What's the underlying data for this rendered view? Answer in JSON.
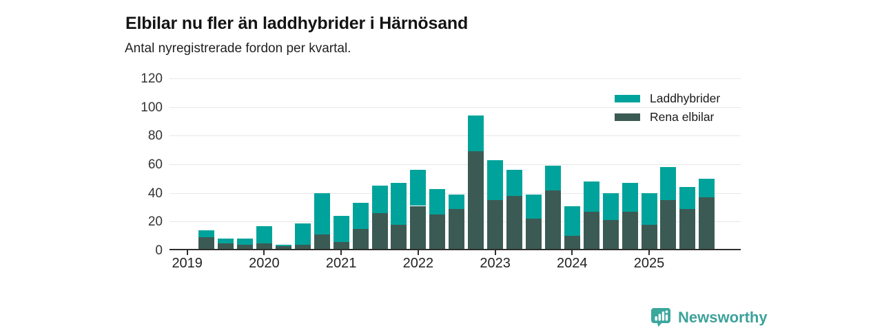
{
  "header": {
    "title": "Elbilar nu fler än laddhybrider i Härnösand",
    "subtitle": "Antal nyregistrerade fordon per kvartal."
  },
  "chart_data": {
    "type": "bar",
    "stacked": true,
    "title": "Elbilar nu fler än laddhybrider i Härnösand",
    "subtitle": "Antal nyregistrerade fordon per kvartal.",
    "x": [
      "2019-Q1",
      "2019-Q2",
      "2019-Q3",
      "2019-Q4",
      "2020-Q1",
      "2020-Q2",
      "2020-Q3",
      "2020-Q4",
      "2021-Q1",
      "2021-Q2",
      "2021-Q3",
      "2021-Q4",
      "2022-Q1",
      "2022-Q2",
      "2022-Q3",
      "2022-Q4",
      "2023-Q1",
      "2023-Q2",
      "2023-Q3",
      "2023-Q4",
      "2024-Q1",
      "2024-Q2",
      "2024-Q3",
      "2024-Q4",
      "2025-Q1",
      "2025-Q2",
      "2025-Q3",
      "2025-Q4"
    ],
    "series": [
      {
        "name": "Laddhybrider",
        "color": "#00a39b",
        "stack_order": "top",
        "values": [
          0,
          5,
          3,
          4,
          12,
          1,
          15,
          29,
          18,
          18,
          19,
          29,
          25,
          18,
          10,
          25,
          28,
          18,
          17,
          17,
          21,
          21,
          19,
          20,
          22,
          23,
          15,
          13
        ]
      },
      {
        "name": "Rena elbilar",
        "color": "#3c5a54",
        "stack_order": "bottom",
        "values": [
          0,
          8,
          4,
          3,
          4,
          2,
          3,
          10,
          5,
          14,
          25,
          17,
          30,
          24,
          28,
          68,
          34,
          37,
          21,
          41,
          9,
          26,
          20,
          26,
          17,
          34,
          28,
          36
        ]
      }
    ],
    "y_axis": {
      "min": 0,
      "max": 120,
      "ticks": [
        0,
        20,
        40,
        60,
        80,
        100,
        120
      ]
    },
    "x_axis": {
      "year_labels": [
        "2019",
        "2020",
        "2021",
        "2022",
        "2023",
        "2024",
        "2025"
      ]
    },
    "legend_position": "top-right",
    "grid": "horizontal",
    "colors": {
      "gridline": "#e7e7e7",
      "axis": "#2e2e2e",
      "tick_text": "#333333"
    }
  },
  "branding": {
    "name": "Newsworthy",
    "text_color": "#3da29a",
    "icon_color": "#3ba79d",
    "icon": "newsworthy-logo-icon"
  }
}
